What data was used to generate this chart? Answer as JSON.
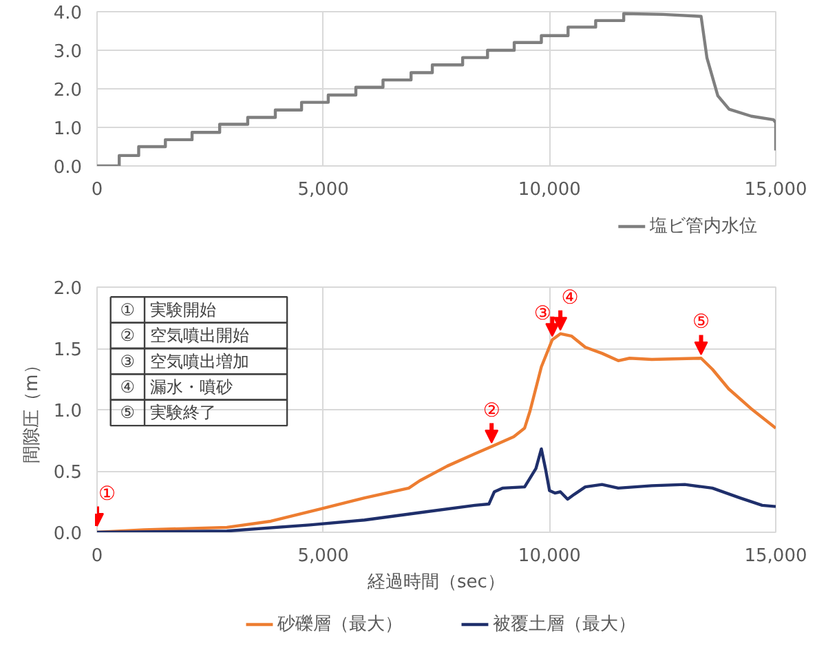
{
  "chart_data": [
    {
      "type": "line",
      "xlim": [
        0,
        15000
      ],
      "ylim": [
        0,
        4
      ],
      "xticks": [
        {
          "value": 0,
          "label": "0"
        },
        {
          "value": 5000,
          "label": "5,000"
        },
        {
          "value": 10000,
          "label": "10,000"
        },
        {
          "value": 15000,
          "label": "15,000"
        }
      ],
      "yticks": [
        {
          "value": 0,
          "label": "0.0"
        },
        {
          "value": 1,
          "label": "1.0"
        },
        {
          "value": 2,
          "label": "2.0"
        },
        {
          "value": 3,
          "label": "3.0"
        },
        {
          "value": 4,
          "label": "4.0"
        }
      ],
      "grid": true,
      "legend": "bottom right",
      "series": [
        {
          "name": "塩ビ管内水位",
          "color": "#7f7f7f",
          "x": [
            0,
            490,
            490,
            920,
            920,
            1510,
            1510,
            2100,
            2100,
            2710,
            2710,
            3330,
            3330,
            3940,
            3940,
            4520,
            4520,
            5110,
            5110,
            5720,
            5720,
            6320,
            6320,
            6940,
            6940,
            7410,
            7410,
            8080,
            8080,
            8630,
            8630,
            9220,
            9220,
            9820,
            9820,
            10410,
            10410,
            11020,
            11020,
            11640,
            11640,
            12500,
            13350,
            13480,
            13720,
            13970,
            14460,
            14950,
            15000,
            15000
          ],
          "values": [
            0,
            0,
            0.27,
            0.27,
            0.5,
            0.5,
            0.68,
            0.68,
            0.87,
            0.87,
            1.08,
            1.08,
            1.26,
            1.26,
            1.45,
            1.45,
            1.65,
            1.65,
            1.84,
            1.84,
            2.04,
            2.04,
            2.23,
            2.23,
            2.42,
            2.42,
            2.62,
            2.62,
            2.81,
            2.81,
            3.0,
            3.0,
            3.2,
            3.2,
            3.38,
            3.38,
            3.6,
            3.6,
            3.77,
            3.77,
            3.95,
            3.93,
            3.88,
            2.8,
            1.82,
            1.47,
            1.29,
            1.2,
            1.12,
            0.4
          ]
        }
      ]
    },
    {
      "type": "line",
      "xlabel": "経過時間（sec）",
      "ylabel": "間隙圧（m）",
      "xlim": [
        0,
        15000
      ],
      "ylim": [
        0,
        2
      ],
      "xticks": [
        {
          "value": 0,
          "label": "0"
        },
        {
          "value": 5000,
          "label": "5,000"
        },
        {
          "value": 10000,
          "label": "10,000"
        },
        {
          "value": 15000,
          "label": "15,000"
        }
      ],
      "yticks": [
        {
          "value": 0,
          "label": "0.0"
        },
        {
          "value": 0.5,
          "label": "0.5"
        },
        {
          "value": 1,
          "label": "1.0"
        },
        {
          "value": 1.5,
          "label": "1.5"
        },
        {
          "value": 2,
          "label": "2.0"
        }
      ],
      "grid": true,
      "legend": "bottom",
      "series": [
        {
          "name": "砂礫層（最大）",
          "color": "#ed7d31",
          "x": [
            0,
            1040,
            2870,
            3840,
            4940,
            5910,
            6890,
            7130,
            7740,
            8350,
            8720,
            9210,
            9450,
            9570,
            9820,
            10060,
            10240,
            10490,
            10790,
            11160,
            11520,
            11770,
            12260,
            13350,
            13600,
            13960,
            14450,
            15000
          ],
          "values": [
            0,
            0.02,
            0.04,
            0.09,
            0.19,
            0.28,
            0.36,
            0.42,
            0.54,
            0.64,
            0.7,
            0.78,
            0.85,
            0.99,
            1.35,
            1.57,
            1.62,
            1.6,
            1.51,
            1.46,
            1.4,
            1.42,
            1.41,
            1.42,
            1.33,
            1.17,
            1.01,
            0.85
          ]
        },
        {
          "name": "被覆土層（最大）",
          "color": "#1f2f6b",
          "x": [
            0,
            2870,
            4700,
            5910,
            7130,
            8350,
            8660,
            8780,
            8960,
            9450,
            9700,
            9820,
            9910,
            10000,
            10120,
            10240,
            10400,
            10550,
            10790,
            11160,
            11520,
            12260,
            12990,
            13600,
            14210,
            14700,
            15000
          ],
          "values": [
            0,
            0.01,
            0.06,
            0.1,
            0.16,
            0.22,
            0.23,
            0.33,
            0.36,
            0.37,
            0.52,
            0.68,
            0.52,
            0.34,
            0.32,
            0.33,
            0.27,
            0.31,
            0.37,
            0.39,
            0.36,
            0.38,
            0.39,
            0.36,
            0.28,
            0.22,
            0.21
          ]
        }
      ],
      "annotations": [
        {
          "text": "①",
          "x": 0,
          "y": 0.02
        },
        {
          "text": "②",
          "x": 8720,
          "y": 0.7
        },
        {
          "text": "③",
          "x": 10060,
          "y": 1.57
        },
        {
          "text": "④",
          "x": 10240,
          "y": 1.62
        },
        {
          "text": "⑤",
          "x": 13350,
          "y": 1.42
        },
        "① 実験開始",
        "② 空気噴出開始",
        "③ 空気噴出増加",
        "④ 漏水・噴砂",
        "⑤ 実験終了"
      ]
    }
  ]
}
